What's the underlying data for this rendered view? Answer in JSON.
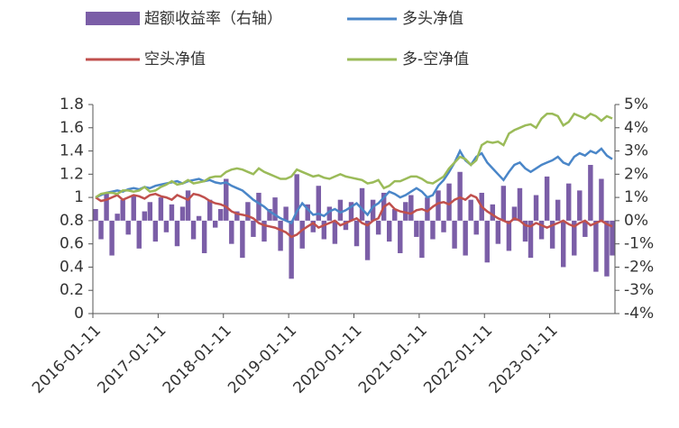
{
  "chart_data": {
    "type": "bar-line",
    "categories": [
      "2016-01-11",
      null,
      null,
      null,
      null,
      null,
      null,
      null,
      null,
      null,
      null,
      null,
      "2017-01-11",
      null,
      null,
      null,
      null,
      null,
      null,
      null,
      null,
      null,
      null,
      null,
      "2018-01-11",
      null,
      null,
      null,
      null,
      null,
      null,
      null,
      null,
      null,
      null,
      null,
      "2019-01-11",
      null,
      null,
      null,
      null,
      null,
      null,
      null,
      null,
      null,
      null,
      null,
      "2020-01-11",
      null,
      null,
      null,
      null,
      null,
      null,
      null,
      null,
      null,
      null,
      null,
      "2021-01-11",
      null,
      null,
      null,
      null,
      null,
      null,
      null,
      null,
      null,
      null,
      null,
      "2022-01-11",
      null,
      null,
      null,
      null,
      null,
      null,
      null,
      null,
      null,
      null,
      null,
      "2023-01-11",
      null,
      null,
      null,
      null,
      null,
      null,
      null,
      null,
      null,
      null,
      null
    ],
    "series": [
      {
        "name": "超额收益率（右轴）",
        "type": "bar",
        "axis": "y2",
        "color": "#7b5ea7",
        "values": [
          0.5,
          -0.8,
          1.2,
          -1.5,
          0.3,
          0.9,
          -0.6,
          1.1,
          -1.2,
          0.4,
          0.8,
          -0.9,
          1.0,
          -0.5,
          0.7,
          -1.1,
          0.6,
          1.3,
          -0.8,
          0.2,
          -1.4,
          0.9,
          -0.3,
          0.5,
          1.8,
          -1.0,
          0.4,
          -1.6,
          0.8,
          -0.7,
          1.2,
          -0.9,
          0.5,
          1.0,
          -1.3,
          0.6,
          -2.5,
          2.0,
          -1.2,
          0.7,
          -0.5,
          1.5,
          -0.8,
          0.6,
          -1.0,
          0.9,
          -0.4,
          0.8,
          -1.1,
          1.4,
          -1.7,
          0.9,
          -0.6,
          1.2,
          -0.9,
          0.5,
          -1.4,
          0.8,
          1.1,
          -0.7,
          -1.6,
          1.0,
          -0.8,
          1.3,
          -0.5,
          1.6,
          -1.2,
          2.1,
          -1.5,
          0.9,
          -0.6,
          1.2,
          -1.8,
          0.7,
          -1.0,
          1.5,
          -1.3,
          0.6,
          1.4,
          -0.9,
          -1.6,
          1.1,
          -0.8,
          1.9,
          -1.2,
          0.9,
          -2.0,
          1.6,
          -1.5,
          1.3,
          -0.7,
          2.4,
          -2.2,
          1.8,
          -2.4,
          -1.5
        ]
      },
      {
        "name": "多头净值",
        "type": "line",
        "color": "#4a86c8",
        "values": [
          1.0,
          1.02,
          1.04,
          1.05,
          1.06,
          1.05,
          1.07,
          1.08,
          1.07,
          1.09,
          1.08,
          1.1,
          1.11,
          1.12,
          1.13,
          1.14,
          1.12,
          1.14,
          1.15,
          1.16,
          1.14,
          1.15,
          1.13,
          1.12,
          1.13,
          1.1,
          1.08,
          1.06,
          1.02,
          0.98,
          0.95,
          0.92,
          0.88,
          0.85,
          0.82,
          0.8,
          0.78,
          0.88,
          0.95,
          0.9,
          0.85,
          0.86,
          0.84,
          0.88,
          0.9,
          0.87,
          0.89,
          0.92,
          0.95,
          0.9,
          0.85,
          0.92,
          0.95,
          1.0,
          1.05,
          1.03,
          1.0,
          1.02,
          1.05,
          1.08,
          1.05,
          1.0,
          1.02,
          1.1,
          1.15,
          1.22,
          1.3,
          1.4,
          1.32,
          1.28,
          1.35,
          1.38,
          1.3,
          1.25,
          1.2,
          1.15,
          1.22,
          1.28,
          1.3,
          1.25,
          1.22,
          1.25,
          1.28,
          1.3,
          1.32,
          1.35,
          1.3,
          1.28,
          1.35,
          1.38,
          1.36,
          1.4,
          1.38,
          1.42,
          1.36,
          1.33
        ]
      },
      {
        "name": "空头净值",
        "type": "line",
        "color": "#c0504d",
        "values": [
          1.0,
          0.97,
          0.98,
          1.0,
          1.02,
          0.98,
          1.0,
          1.02,
          1.01,
          0.99,
          1.02,
          1.03,
          1.01,
          1.0,
          0.98,
          1.02,
          1.0,
          0.98,
          1.03,
          1.02,
          1.0,
          0.97,
          0.95,
          0.94,
          0.92,
          0.88,
          0.86,
          0.85,
          0.84,
          0.82,
          0.78,
          0.76,
          0.75,
          0.74,
          0.72,
          0.7,
          0.66,
          0.68,
          0.72,
          0.75,
          0.78,
          0.74,
          0.76,
          0.78,
          0.8,
          0.76,
          0.78,
          0.8,
          0.82,
          0.78,
          0.76,
          0.8,
          0.82,
          0.92,
          0.95,
          0.9,
          0.88,
          0.87,
          0.86,
          0.89,
          0.9,
          0.88,
          0.92,
          0.95,
          0.96,
          0.94,
          0.98,
          1.0,
          0.98,
          1.02,
          1.0,
          0.92,
          0.88,
          0.85,
          0.82,
          0.8,
          0.78,
          0.82,
          0.8,
          0.76,
          0.75,
          0.78,
          0.76,
          0.74,
          0.76,
          0.78,
          0.8,
          0.77,
          0.75,
          0.78,
          0.8,
          0.76,
          0.78,
          0.8,
          0.77,
          0.75
        ]
      },
      {
        "name": "多-空净值",
        "type": "line",
        "color": "#9bbb59",
        "values": [
          1.0,
          1.03,
          1.04,
          1.04,
          1.03,
          1.06,
          1.06,
          1.05,
          1.06,
          1.09,
          1.05,
          1.06,
          1.09,
          1.11,
          1.14,
          1.11,
          1.12,
          1.15,
          1.12,
          1.13,
          1.14,
          1.17,
          1.18,
          1.18,
          1.22,
          1.24,
          1.25,
          1.24,
          1.22,
          1.2,
          1.25,
          1.22,
          1.2,
          1.18,
          1.16,
          1.16,
          1.18,
          1.24,
          1.22,
          1.2,
          1.18,
          1.19,
          1.17,
          1.16,
          1.18,
          1.2,
          1.18,
          1.17,
          1.16,
          1.15,
          1.12,
          1.13,
          1.15,
          1.08,
          1.1,
          1.14,
          1.14,
          1.16,
          1.18,
          1.18,
          1.16,
          1.13,
          1.12,
          1.15,
          1.18,
          1.25,
          1.3,
          1.35,
          1.33,
          1.28,
          1.32,
          1.45,
          1.48,
          1.47,
          1.48,
          1.45,
          1.55,
          1.58,
          1.6,
          1.62,
          1.63,
          1.6,
          1.68,
          1.72,
          1.72,
          1.7,
          1.62,
          1.65,
          1.72,
          1.7,
          1.68,
          1.72,
          1.7,
          1.66,
          1.7,
          1.68
        ]
      }
    ],
    "ylim": [
      0,
      1.8
    ],
    "yticks": [
      0,
      0.2,
      0.4,
      0.6,
      0.8,
      1,
      1.2,
      1.4,
      1.6,
      1.8
    ],
    "y2lim": [
      -4,
      5
    ],
    "y2ticks": [
      {
        "value": 5,
        "label": "5%"
      },
      {
        "value": 4,
        "label": "4%"
      },
      {
        "value": 3,
        "label": "3%"
      },
      {
        "value": 2,
        "label": "2%"
      },
      {
        "value": 1,
        "label": "1%"
      },
      {
        "value": 0,
        "label": "0%"
      },
      {
        "value": -1,
        "label": "-1%"
      },
      {
        "value": -2,
        "label": "-2%"
      },
      {
        "value": -3,
        "label": "-3%"
      },
      {
        "value": -4,
        "label": "-4%"
      }
    ]
  }
}
